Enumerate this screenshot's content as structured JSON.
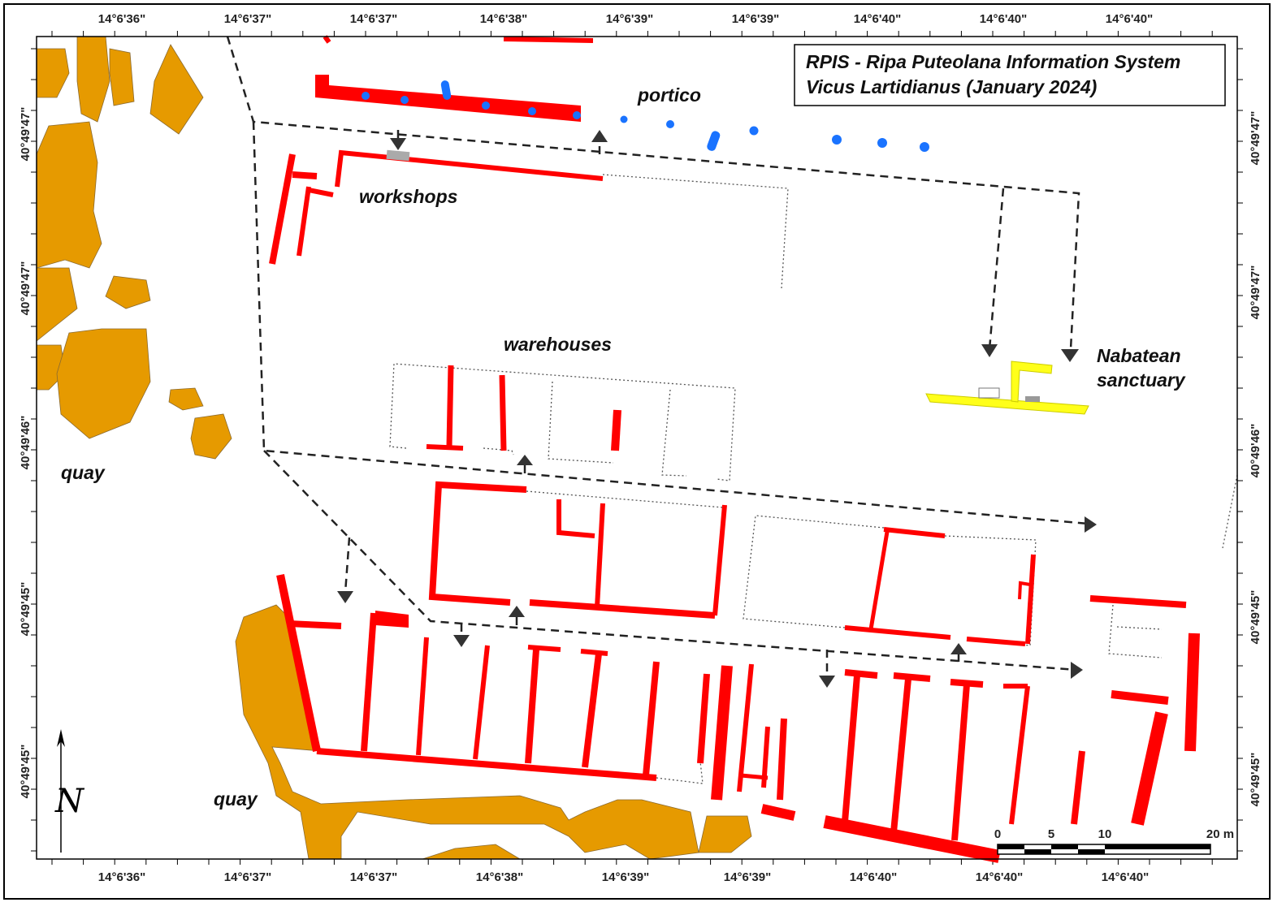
{
  "title": [
    "RPIS - Ripa Puteolana Information System",
    "Vicus Lartidianus (January 2024)"
  ],
  "labels": {
    "portico": "portico",
    "workshops": "workshops",
    "warehouses": "warehouses",
    "sanctuary": [
      "Nabatean",
      "sanctuary"
    ],
    "quay": [
      "quay",
      "quay"
    ]
  },
  "north": "N",
  "top_ticks": [
    "14°6'36\"",
    "14°6'37\"",
    "14°6'37\"",
    "14°6'38\"",
    "14°6'39\"",
    "14°6'39\"",
    "14°6'40\"",
    "14°6'40\"",
    "14°6'40\""
  ],
  "bottom_ticks": [
    "14°6'36\"",
    "14°6'37\"",
    "14°6'37\"",
    "14°6'38\"",
    "14°6'39\"",
    "14°6'39\"",
    "14°6'40\"",
    "14°6'40\"",
    "14°6'40\""
  ],
  "left_ticks": [
    "40°49'47\"",
    "40°49'47\"",
    "40°49'46\"",
    "40°49'45\"",
    "40°49'45\""
  ],
  "right_ticks": [
    "40°49'47\"",
    "40°49'47\"",
    "40°49'46\"",
    "40°49'45\"",
    "40°49'45\""
  ],
  "scale": [
    "0",
    "5",
    "10",
    "20 m"
  ]
}
